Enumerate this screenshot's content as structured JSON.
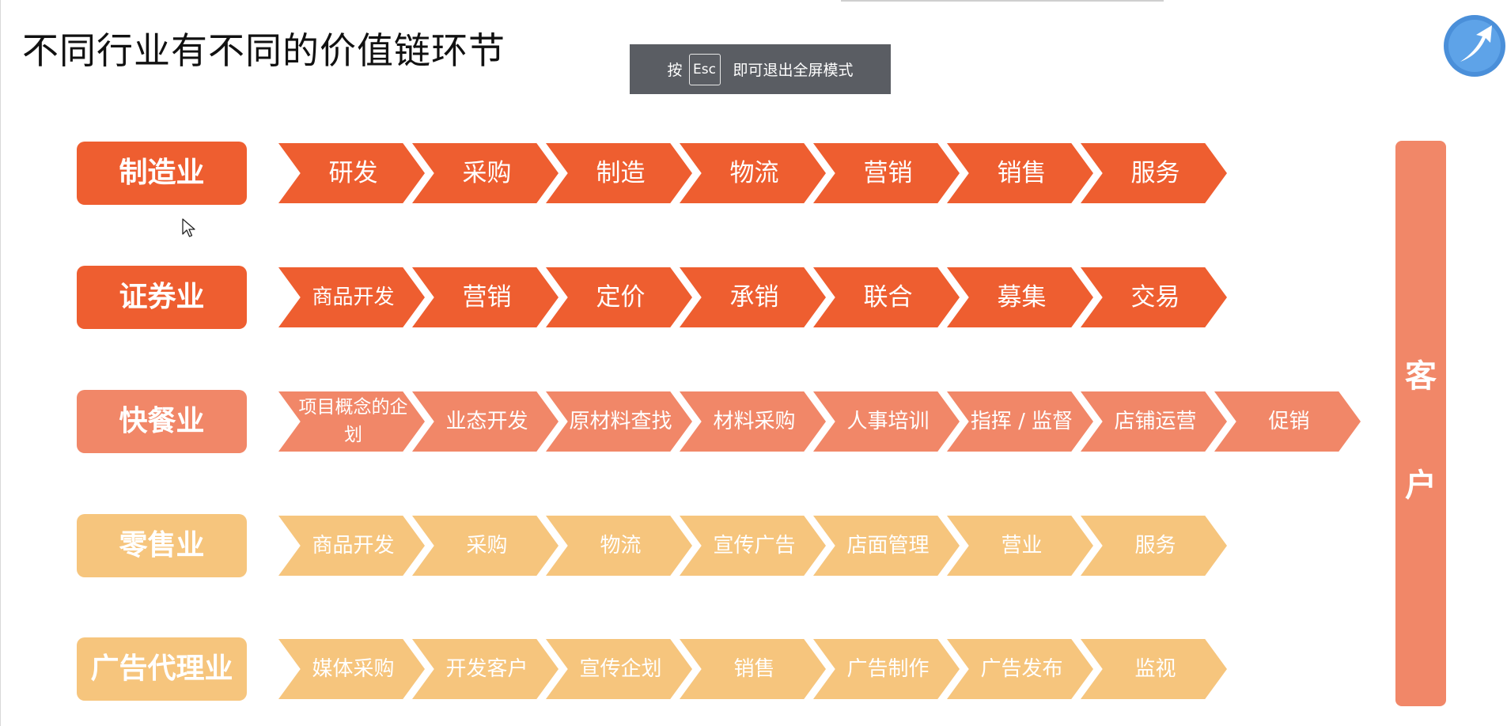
{
  "title": "不同行业有不同的价值链环节",
  "fullscreen_notice": {
    "press": "按",
    "key": "Esc",
    "message": "即可退出全屏模式"
  },
  "colors": {
    "dark": "#ee5e30",
    "mid": "#f18768",
    "light": "#f6c57d",
    "banner": "#5a5d63"
  },
  "customer": {
    "char1": "客",
    "char2": "户"
  },
  "rows": [
    {
      "industry": "制造业",
      "stages": [
        "研发",
        "采购",
        "制造",
        "物流",
        "营销",
        "销售",
        "服务"
      ]
    },
    {
      "industry": "证券业",
      "stages": [
        "商品开发",
        "营销",
        "定价",
        "承销",
        "联合",
        "募集",
        "交易"
      ]
    },
    {
      "industry": "快餐业",
      "stages": [
        "项目概念的企划",
        "业态开发",
        "原材料查找",
        "材料采购",
        "人事培训",
        "指挥 / 监督",
        "店铺运营",
        "促销"
      ]
    },
    {
      "industry": "零售业",
      "stages": [
        "商品开发",
        "采购",
        "物流",
        "宣传广告",
        "店面管理",
        "营业",
        "服务"
      ]
    },
    {
      "industry": "广告代理业",
      "stages": [
        "媒体采购",
        "开发客户",
        "宣传企划",
        "销售",
        "广告制作",
        "广告发布",
        "监视"
      ]
    }
  ]
}
